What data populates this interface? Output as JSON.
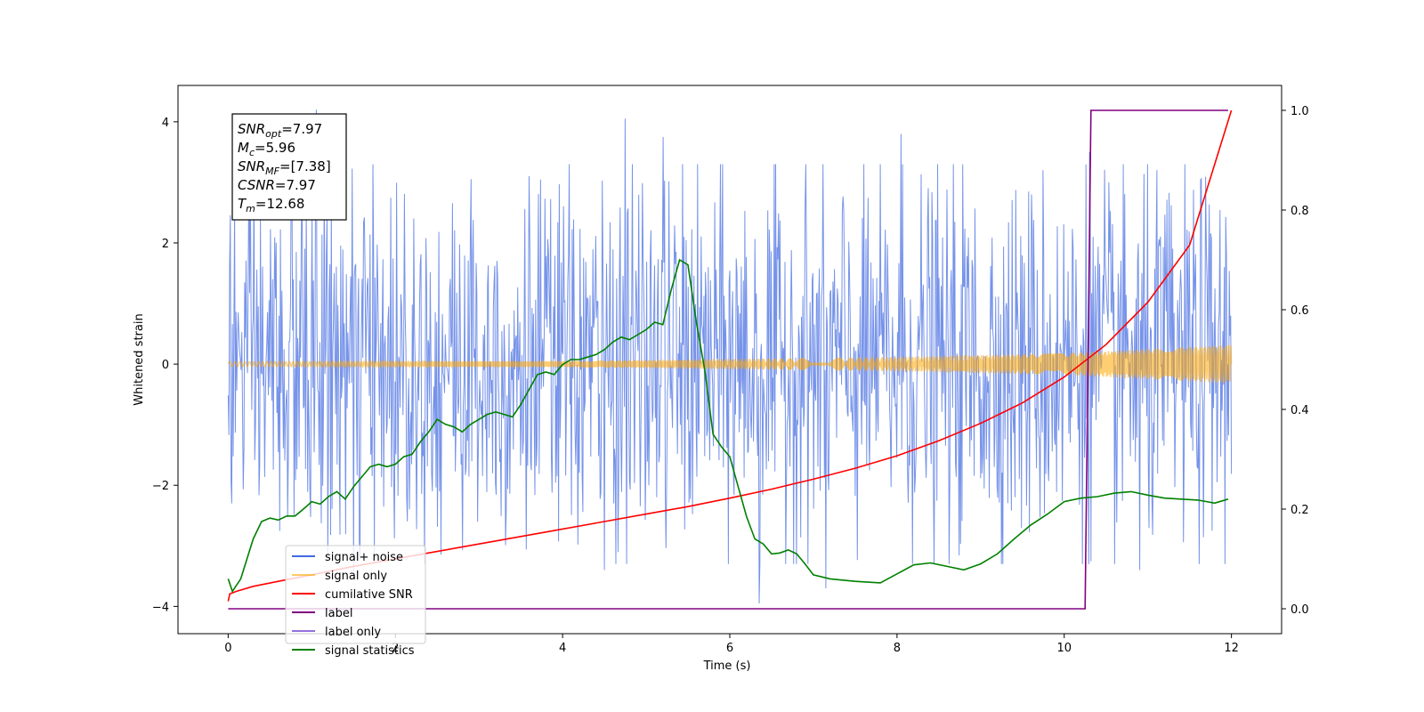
{
  "chart_data": {
    "type": "line",
    "title": "",
    "xlabel": "Time (s)",
    "ylabel": "Whitened strain",
    "y2label": "",
    "xlim": [
      -0.6,
      12.6
    ],
    "ylim": [
      -4.45,
      4.6
    ],
    "y2lim": [
      -0.05,
      1.05
    ],
    "xticks": [
      0,
      2,
      4,
      6,
      8,
      10,
      12
    ],
    "yticks": [
      -4,
      -2,
      0,
      2,
      4
    ],
    "y2ticks": [
      0.0,
      0.2,
      0.4,
      0.6,
      0.8,
      1.0
    ],
    "grid": false,
    "annotation": {
      "lines": [
        {
          "base": "SNR",
          "sub": "opt",
          "rest": "=7.97"
        },
        {
          "base": "M",
          "sub": "c",
          "rest": "=5.96"
        },
        {
          "base": "SNR",
          "sub": "MF",
          "rest": "=[7.38]"
        },
        {
          "base": "CSNR",
          "sub": "",
          "rest": "=7.97"
        },
        {
          "base": "T",
          "sub": "m",
          "rest": "=12.68"
        }
      ]
    },
    "legend": {
      "placement": "lower-left",
      "entries": [
        {
          "label": "signal+ noise",
          "color": "#4169e1"
        },
        {
          "label": "signal only",
          "color": "#ffa500"
        },
        {
          "label": "cumilative SNR",
          "color": "#ff0000"
        },
        {
          "label": "label",
          "color": "#800080"
        },
        {
          "label": "label only",
          "color": "#9370db"
        },
        {
          "label": "signal statistics",
          "color": "#008000"
        }
      ]
    },
    "series": [
      {
        "name": "signal+ noise",
        "axis": "left",
        "color": "#4169e1",
        "kind": "noise",
        "x_range": [
          0,
          12
        ],
        "typical_band": [
          -1.5,
          1.7
        ],
        "peaks": [
          [
            0.02,
            1.65
          ],
          [
            0.08,
            2.6
          ],
          [
            1.05,
            4.2
          ],
          [
            1.5,
            -3.5
          ],
          [
            4.5,
            -3.4
          ],
          [
            4.75,
            4.05
          ],
          [
            5.2,
            3.75
          ],
          [
            6.35,
            -3.95
          ],
          [
            7.15,
            -3.7
          ],
          [
            8.05,
            3.8
          ],
          [
            10.3,
            3.5
          ],
          [
            10.9,
            -3.4
          ]
        ]
      },
      {
        "name": "signal only",
        "axis": "left",
        "color": "#ffa500",
        "kind": "chirp",
        "x_range": [
          0,
          12
        ],
        "amplitude": [
          [
            0,
            0.04
          ],
          [
            4,
            0.05
          ],
          [
            8,
            0.12
          ],
          [
            10,
            0.18
          ],
          [
            12,
            0.32
          ]
        ]
      },
      {
        "name": "cumilative SNR",
        "axis": "right",
        "color": "#ff0000",
        "x": [
          0,
          0.02,
          0.1,
          0.3,
          0.6,
          1,
          1.5,
          2,
          2.5,
          3,
          3.5,
          4,
          4.5,
          5,
          5.5,
          6,
          6.5,
          7,
          7.5,
          8,
          8.5,
          9,
          9.5,
          10,
          10.5,
          11,
          11.5,
          12
        ],
        "y": [
          0.015,
          0.03,
          0.035,
          0.045,
          0.055,
          0.068,
          0.085,
          0.1,
          0.115,
          0.13,
          0.145,
          0.16,
          0.175,
          0.19,
          0.205,
          0.222,
          0.24,
          0.26,
          0.282,
          0.307,
          0.337,
          0.372,
          0.413,
          0.465,
          0.53,
          0.615,
          0.73,
          1.0
        ]
      },
      {
        "name": "label",
        "axis": "right",
        "color": "#800080",
        "x": [
          0,
          10.25,
          10.32,
          11.96
        ],
        "y": [
          0.0,
          0.0,
          1.0,
          1.0
        ]
      },
      {
        "name": "signal statistics",
        "axis": "right",
        "color": "#008000",
        "x": [
          0,
          0.05,
          0.15,
          0.3,
          0.4,
          0.5,
          0.6,
          0.7,
          0.8,
          0.9,
          1.0,
          1.1,
          1.2,
          1.3,
          1.4,
          1.5,
          1.6,
          1.7,
          1.8,
          1.9,
          2.0,
          2.1,
          2.2,
          2.3,
          2.4,
          2.5,
          2.6,
          2.7,
          2.8,
          2.9,
          3.0,
          3.1,
          3.2,
          3.3,
          3.4,
          3.5,
          3.6,
          3.7,
          3.8,
          3.9,
          4.0,
          4.1,
          4.2,
          4.3,
          4.4,
          4.5,
          4.6,
          4.7,
          4.8,
          4.9,
          5.0,
          5.1,
          5.2,
          5.3,
          5.4,
          5.5,
          5.6,
          5.7,
          5.8,
          5.9,
          6.0,
          6.1,
          6.2,
          6.3,
          6.4,
          6.5,
          6.6,
          6.7,
          6.8,
          6.9,
          7.0,
          7.2,
          7.5,
          7.8,
          8.0,
          8.2,
          8.4,
          8.6,
          8.8,
          9.0,
          9.2,
          9.4,
          9.6,
          9.8,
          10.0,
          10.2,
          10.4,
          10.6,
          10.8,
          11.0,
          11.2,
          11.4,
          11.6,
          11.8,
          11.96
        ],
        "y": [
          0.06,
          0.035,
          0.06,
          0.14,
          0.175,
          0.182,
          0.178,
          0.186,
          0.186,
          0.2,
          0.215,
          0.21,
          0.225,
          0.235,
          0.22,
          0.245,
          0.265,
          0.285,
          0.29,
          0.285,
          0.29,
          0.305,
          0.31,
          0.335,
          0.355,
          0.38,
          0.37,
          0.365,
          0.355,
          0.37,
          0.38,
          0.39,
          0.395,
          0.39,
          0.385,
          0.41,
          0.44,
          0.47,
          0.475,
          0.47,
          0.49,
          0.5,
          0.5,
          0.505,
          0.51,
          0.52,
          0.535,
          0.545,
          0.54,
          0.55,
          0.56,
          0.575,
          0.57,
          0.64,
          0.7,
          0.69,
          0.575,
          0.48,
          0.35,
          0.325,
          0.305,
          0.245,
          0.185,
          0.14,
          0.13,
          0.11,
          0.112,
          0.118,
          0.11,
          0.09,
          0.068,
          0.06,
          0.055,
          0.052,
          0.07,
          0.088,
          0.092,
          0.085,
          0.078,
          0.09,
          0.11,
          0.14,
          0.168,
          0.19,
          0.215,
          0.222,
          0.225,
          0.232,
          0.235,
          0.228,
          0.222,
          0.22,
          0.218,
          0.212,
          0.22
        ]
      }
    ]
  }
}
